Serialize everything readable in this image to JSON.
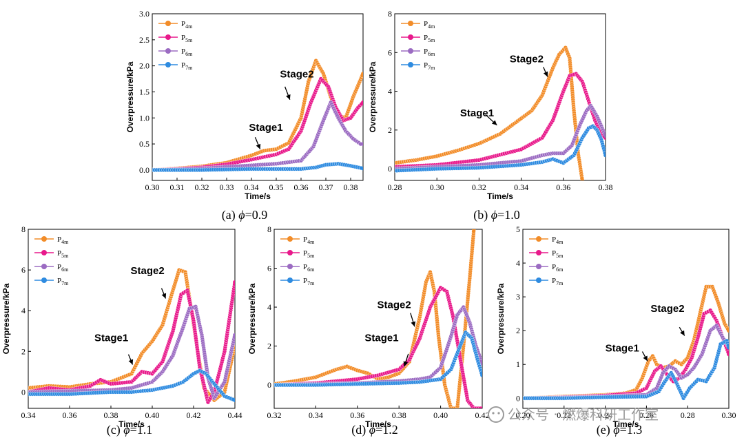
{
  "watermark": {
    "text": "公众号 · 燃爆科研工作室"
  },
  "legend_entries": [
    {
      "base": "P",
      "sub": "4m",
      "color": "#F28C28"
    },
    {
      "base": "P",
      "sub": "5m",
      "color": "#E8198B"
    },
    {
      "base": "P",
      "sub": "6m",
      "color": "#9B6BC2"
    },
    {
      "base": "P",
      "sub": "7m",
      "color": "#2E8BE0"
    }
  ],
  "chart_data": [
    {
      "type": "line",
      "caption": {
        "prefix": "(a) ",
        "symbol": "ϕ",
        "suffix": "=0.9"
      },
      "xlabel": "Time/s",
      "ylabel": "Overpressure/kPa",
      "xlim": [
        0.3,
        0.385
      ],
      "ylim": [
        -0.2,
        3.0
      ],
      "xticks": [
        0.3,
        0.31,
        0.32,
        0.33,
        0.34,
        0.35,
        0.36,
        0.37,
        0.38
      ],
      "xtick_labels": [
        "0.30",
        "0.31",
        "0.32",
        "0.33",
        "0.34",
        "0.35",
        "0.36",
        "0.37",
        "0.38"
      ],
      "yticks": [
        0.0,
        0.5,
        1.0,
        1.5,
        2.0,
        2.5,
        3.0
      ],
      "ytick_labels": [
        "0.0",
        "0.5",
        "1.0",
        "1.5",
        "2.0",
        "2.5",
        "3.0"
      ],
      "annotations": [
        {
          "text": "Stage1",
          "x": 0.339,
          "y": 0.75,
          "ax": 0.3415,
          "ay": 0.63,
          "bx": 0.3435,
          "by": 0.4
        },
        {
          "text": "Stage2",
          "x": 0.3515,
          "y": 1.78,
          "ax": 0.3535,
          "ay": 1.6,
          "bx": 0.3555,
          "by": 1.35
        }
      ],
      "series": [
        {
          "name": "P4m",
          "x": [
            0.3,
            0.31,
            0.32,
            0.33,
            0.34,
            0.345,
            0.35,
            0.355,
            0.36,
            0.363,
            0.366,
            0.369,
            0.372,
            0.375,
            0.378,
            0.381,
            0.385
          ],
          "y": [
            0.0,
            0.03,
            0.07,
            0.14,
            0.28,
            0.37,
            0.4,
            0.52,
            1.0,
            1.7,
            2.1,
            1.85,
            1.4,
            1.05,
            1.0,
            1.4,
            1.85
          ]
        },
        {
          "name": "P5m",
          "x": [
            0.3,
            0.31,
            0.32,
            0.33,
            0.34,
            0.35,
            0.355,
            0.36,
            0.364,
            0.368,
            0.371,
            0.374,
            0.377,
            0.38,
            0.383,
            0.385
          ],
          "y": [
            0.0,
            0.02,
            0.05,
            0.11,
            0.2,
            0.3,
            0.4,
            0.75,
            1.3,
            1.75,
            1.6,
            1.2,
            0.95,
            1.0,
            1.2,
            1.3
          ]
        },
        {
          "name": "P6m",
          "x": [
            0.3,
            0.31,
            0.32,
            0.33,
            0.34,
            0.35,
            0.36,
            0.365,
            0.369,
            0.372,
            0.375,
            0.378,
            0.381,
            0.384,
            0.385
          ],
          "y": [
            0.0,
            0.01,
            0.03,
            0.06,
            0.09,
            0.12,
            0.18,
            0.45,
            0.95,
            1.3,
            1.0,
            0.75,
            0.6,
            0.5,
            0.5
          ]
        },
        {
          "name": "P7m",
          "x": [
            0.3,
            0.31,
            0.32,
            0.33,
            0.34,
            0.35,
            0.36,
            0.366,
            0.37,
            0.375,
            0.38,
            0.385
          ],
          "y": [
            0.0,
            0.0,
            0.0,
            0.01,
            0.02,
            0.02,
            0.02,
            0.05,
            0.1,
            0.12,
            0.08,
            0.03
          ]
        }
      ]
    },
    {
      "type": "line",
      "caption": {
        "prefix": "(b) ",
        "symbol": "ϕ",
        "suffix": "=1.0"
      },
      "xlabel": "Time/s",
      "ylabel": "Overpressure/kPa",
      "xlim": [
        0.28,
        0.38
      ],
      "ylim": [
        -0.6,
        8.0
      ],
      "xticks": [
        0.28,
        0.3,
        0.32,
        0.34,
        0.36,
        0.38
      ],
      "xtick_labels": [
        "0.28",
        "0.30",
        "0.32",
        "0.34",
        "0.36",
        "0.38"
      ],
      "yticks": [
        0,
        2,
        4,
        6,
        8
      ],
      "ytick_labels": [
        "0",
        "2",
        "4",
        "6",
        "8"
      ],
      "annotations": [
        {
          "text": "Stage1",
          "x": 0.311,
          "y": 2.7,
          "ax": 0.323,
          "ay": 2.8,
          "bx": 0.3285,
          "by": 2.25
        },
        {
          "text": "Stage2",
          "x": 0.3345,
          "y": 5.5,
          "ax": 0.3505,
          "ay": 5.25,
          "bx": 0.3525,
          "by": 4.75
        }
      ],
      "series": [
        {
          "name": "P4m",
          "x": [
            0.28,
            0.29,
            0.3,
            0.31,
            0.32,
            0.33,
            0.34,
            0.345,
            0.35,
            0.355,
            0.358,
            0.361,
            0.363,
            0.365,
            0.367,
            0.369
          ],
          "y": [
            0.3,
            0.45,
            0.65,
            0.95,
            1.3,
            1.8,
            2.6,
            3.0,
            3.8,
            5.2,
            5.9,
            6.25,
            5.7,
            3.0,
            0.8,
            -0.6
          ]
        },
        {
          "name": "P5m",
          "x": [
            0.28,
            0.3,
            0.32,
            0.34,
            0.35,
            0.355,
            0.36,
            0.363,
            0.366,
            0.369,
            0.372,
            0.375,
            0.378,
            0.38
          ],
          "y": [
            0.1,
            0.2,
            0.45,
            1.0,
            1.6,
            2.5,
            4.0,
            4.8,
            4.9,
            4.5,
            3.5,
            2.5,
            1.8,
            1.6
          ]
        },
        {
          "name": "P6m",
          "x": [
            0.28,
            0.3,
            0.32,
            0.34,
            0.35,
            0.355,
            0.36,
            0.364,
            0.368,
            0.371,
            0.373,
            0.376,
            0.378,
            0.38
          ],
          "y": [
            0.0,
            0.1,
            0.2,
            0.4,
            0.7,
            0.8,
            0.8,
            1.2,
            2.3,
            3.0,
            3.25,
            2.7,
            2.2,
            1.7
          ]
        },
        {
          "name": "P7m",
          "x": [
            0.28,
            0.3,
            0.32,
            0.34,
            0.35,
            0.355,
            0.36,
            0.365,
            0.369,
            0.372,
            0.374,
            0.376,
            0.378,
            0.38
          ],
          "y": [
            -0.1,
            0.0,
            0.05,
            0.2,
            0.35,
            0.5,
            0.3,
            0.7,
            1.6,
            2.1,
            2.2,
            2.0,
            1.5,
            0.7
          ]
        }
      ]
    },
    {
      "type": "line",
      "caption": {
        "prefix": "(c) ",
        "symbol": "ϕ",
        "suffix": "=1.1"
      },
      "xlabel": "Time/s",
      "ylabel": "Overpressure/kPa",
      "xlim": [
        0.34,
        0.44
      ],
      "ylim": [
        -0.8,
        8.0
      ],
      "xticks": [
        0.34,
        0.36,
        0.38,
        0.4,
        0.42,
        0.44
      ],
      "xtick_labels": [
        "0.34",
        "0.36",
        "0.38",
        "0.40",
        "0.42",
        "0.44"
      ],
      "yticks": [
        0,
        2,
        4,
        6,
        8
      ],
      "ytick_labels": [
        "0",
        "2",
        "4",
        "6",
        "8"
      ],
      "annotations": [
        {
          "text": "Stage1",
          "x": 0.372,
          "y": 2.5,
          "ax": 0.3885,
          "ay": 1.85,
          "bx": 0.3905,
          "by": 1.35
        },
        {
          "text": "Stage2",
          "x": 0.3895,
          "y": 5.8,
          "ax": 0.4045,
          "ay": 5.1,
          "bx": 0.4065,
          "by": 4.6
        }
      ],
      "series": [
        {
          "name": "P4m",
          "x": [
            0.34,
            0.35,
            0.36,
            0.37,
            0.38,
            0.39,
            0.395,
            0.4,
            0.405,
            0.41,
            0.413,
            0.416,
            0.419,
            0.422,
            0.425,
            0.43,
            0.435,
            0.44
          ],
          "y": [
            0.2,
            0.3,
            0.25,
            0.4,
            0.5,
            0.9,
            1.9,
            2.5,
            3.3,
            5.0,
            6.0,
            5.9,
            4.0,
            2.0,
            0.2,
            -0.4,
            0.0,
            2.3
          ]
        },
        {
          "name": "P5m",
          "x": [
            0.34,
            0.35,
            0.36,
            0.37,
            0.375,
            0.38,
            0.39,
            0.395,
            0.4,
            0.405,
            0.41,
            0.414,
            0.417,
            0.42,
            0.423,
            0.427,
            0.43,
            0.435,
            0.44
          ],
          "y": [
            0.0,
            0.2,
            0.1,
            0.3,
            0.6,
            0.4,
            0.5,
            1.0,
            0.9,
            1.5,
            3.0,
            4.8,
            5.0,
            3.5,
            1.2,
            -0.5,
            0.0,
            2.0,
            5.4
          ]
        },
        {
          "name": "P6m",
          "x": [
            0.34,
            0.36,
            0.38,
            0.39,
            0.4,
            0.405,
            0.41,
            0.415,
            0.418,
            0.421,
            0.424,
            0.427,
            0.43,
            0.435,
            0.44
          ],
          "y": [
            0.0,
            0.05,
            0.1,
            0.2,
            0.5,
            1.0,
            1.8,
            3.2,
            4.1,
            4.2,
            2.8,
            0.7,
            -0.3,
            0.5,
            2.8
          ]
        },
        {
          "name": "P7m",
          "x": [
            0.34,
            0.36,
            0.38,
            0.39,
            0.4,
            0.41,
            0.415,
            0.42,
            0.423,
            0.426,
            0.43,
            0.435,
            0.44
          ],
          "y": [
            -0.1,
            -0.1,
            0.0,
            0.0,
            0.1,
            0.3,
            0.5,
            0.9,
            1.05,
            0.9,
            0.4,
            -0.2,
            -0.4
          ]
        }
      ]
    },
    {
      "type": "line",
      "caption": {
        "prefix": "(d) ",
        "symbol": "ϕ",
        "suffix": "=1.2"
      },
      "xlabel": "Time/s",
      "ylabel": "Overpressure/kPa",
      "xlim": [
        0.32,
        0.42
      ],
      "ylim": [
        -1.2,
        8.0
      ],
      "xticks": [
        0.32,
        0.34,
        0.36,
        0.38,
        0.4,
        0.42
      ],
      "xtick_labels": [
        "0.32",
        "0.34",
        "0.36",
        "0.38",
        "0.40",
        "0.42"
      ],
      "yticks": [
        0,
        2,
        4,
        6,
        8
      ],
      "ytick_labels": [
        "0",
        "2",
        "4",
        "6",
        "8"
      ],
      "annotations": [
        {
          "text": "Stage1",
          "x": 0.3635,
          "y": 2.25,
          "ax": 0.3845,
          "ay": 1.6,
          "bx": 0.3825,
          "by": 0.95
        },
        {
          "text": "Stage2",
          "x": 0.3695,
          "y": 3.95,
          "ax": 0.3855,
          "ay": 3.7,
          "bx": 0.3875,
          "by": 3.0
        }
      ],
      "series": [
        {
          "name": "P4m",
          "x": [
            0.32,
            0.33,
            0.34,
            0.35,
            0.355,
            0.36,
            0.365,
            0.37,
            0.375,
            0.38,
            0.385,
            0.39,
            0.393,
            0.395,
            0.397,
            0.399,
            0.402,
            0.405,
            0.408,
            0.411,
            0.414,
            0.416
          ],
          "y": [
            0.05,
            0.2,
            0.4,
            0.8,
            0.95,
            0.75,
            0.6,
            0.3,
            0.4,
            0.6,
            1.2,
            3.5,
            5.3,
            5.8,
            4.8,
            2.5,
            0.0,
            -1.2,
            -1.2,
            2.0,
            5.5,
            8.0
          ]
        },
        {
          "name": "P5m",
          "x": [
            0.32,
            0.34,
            0.36,
            0.37,
            0.38,
            0.385,
            0.39,
            0.395,
            0.4,
            0.403,
            0.406,
            0.41,
            0.413,
            0.416,
            0.42
          ],
          "y": [
            0.0,
            0.1,
            0.3,
            0.5,
            0.8,
            1.3,
            2.4,
            4.0,
            5.0,
            4.8,
            3.5,
            1.0,
            -0.8,
            -1.2,
            -1.2
          ]
        },
        {
          "name": "P6m",
          "x": [
            0.32,
            0.34,
            0.36,
            0.38,
            0.39,
            0.395,
            0.4,
            0.405,
            0.408,
            0.411,
            0.414,
            0.417,
            0.42
          ],
          "y": [
            0.0,
            0.05,
            0.1,
            0.2,
            0.3,
            0.4,
            0.9,
            2.5,
            3.6,
            4.0,
            3.2,
            2.0,
            1.1
          ]
        },
        {
          "name": "P7m",
          "x": [
            0.32,
            0.34,
            0.36,
            0.38,
            0.39,
            0.4,
            0.405,
            0.409,
            0.412,
            0.415,
            0.418,
            0.42
          ],
          "y": [
            0.0,
            0.0,
            0.05,
            0.1,
            0.15,
            0.3,
            0.8,
            1.9,
            2.7,
            2.4,
            1.2,
            0.5
          ]
        }
      ]
    },
    {
      "type": "line",
      "caption": {
        "prefix": "(e) ",
        "symbol": "ϕ",
        "suffix": "=1.3"
      },
      "xlabel": "Time/s",
      "ylabel": "Overpressure/kPa",
      "xlim": [
        0.2,
        0.3
      ],
      "ylim": [
        -0.3,
        5.0
      ],
      "xticks": [
        0.2,
        0.22,
        0.24,
        0.26,
        0.28,
        0.3
      ],
      "xtick_labels": [
        "0.20",
        "0.22",
        "0.24",
        "0.26",
        "0.28",
        "0.30"
      ],
      "yticks": [
        0,
        1,
        2,
        3,
        4,
        5
      ],
      "ytick_labels": [
        "0",
        "1",
        "2",
        "3",
        "4",
        "5"
      ],
      "annotations": [
        {
          "text": "Stage1",
          "x": 0.24,
          "y": 1.38,
          "ax": 0.258,
          "ay": 1.38,
          "bx": 0.2605,
          "by": 1.1
        },
        {
          "text": "Stage2",
          "x": 0.262,
          "y": 2.55,
          "ax": 0.276,
          "ay": 2.1,
          "bx": 0.2785,
          "by": 1.85
        }
      ],
      "series": [
        {
          "name": "P4m",
          "x": [
            0.2,
            0.22,
            0.24,
            0.25,
            0.255,
            0.258,
            0.261,
            0.263,
            0.265,
            0.268,
            0.271,
            0.274,
            0.277,
            0.28,
            0.283,
            0.286,
            0.289,
            0.292,
            0.295,
            0.298,
            0.3
          ],
          "y": [
            0.0,
            0.05,
            0.1,
            0.15,
            0.25,
            0.6,
            1.1,
            1.25,
            1.0,
            0.9,
            0.95,
            1.1,
            1.0,
            1.2,
            1.7,
            2.5,
            3.3,
            3.3,
            2.8,
            2.2,
            2.0
          ]
        },
        {
          "name": "P5m",
          "x": [
            0.2,
            0.22,
            0.24,
            0.255,
            0.26,
            0.264,
            0.267,
            0.27,
            0.273,
            0.276,
            0.279,
            0.282,
            0.285,
            0.288,
            0.291,
            0.294,
            0.297,
            0.3
          ],
          "y": [
            0.0,
            0.03,
            0.08,
            0.15,
            0.3,
            0.8,
            0.95,
            0.7,
            0.5,
            0.6,
            0.85,
            1.2,
            1.8,
            2.5,
            2.6,
            2.3,
            1.8,
            1.3
          ]
        },
        {
          "name": "P6m",
          "x": [
            0.2,
            0.22,
            0.24,
            0.26,
            0.265,
            0.268,
            0.271,
            0.274,
            0.277,
            0.28,
            0.283,
            0.287,
            0.291,
            0.294,
            0.297,
            0.3
          ],
          "y": [
            0.0,
            0.02,
            0.05,
            0.1,
            0.3,
            0.75,
            0.95,
            0.85,
            0.6,
            0.7,
            0.9,
            1.3,
            2.0,
            2.15,
            1.8,
            1.5
          ]
        },
        {
          "name": "P7m",
          "x": [
            0.2,
            0.22,
            0.24,
            0.26,
            0.266,
            0.269,
            0.272,
            0.275,
            0.278,
            0.281,
            0.285,
            0.289,
            0.293,
            0.296,
            0.299,
            0.3
          ],
          "y": [
            0.0,
            0.0,
            0.03,
            0.05,
            0.2,
            0.5,
            0.75,
            0.4,
            0.0,
            0.3,
            0.55,
            0.5,
            0.9,
            1.6,
            1.7,
            1.5
          ]
        }
      ]
    }
  ]
}
